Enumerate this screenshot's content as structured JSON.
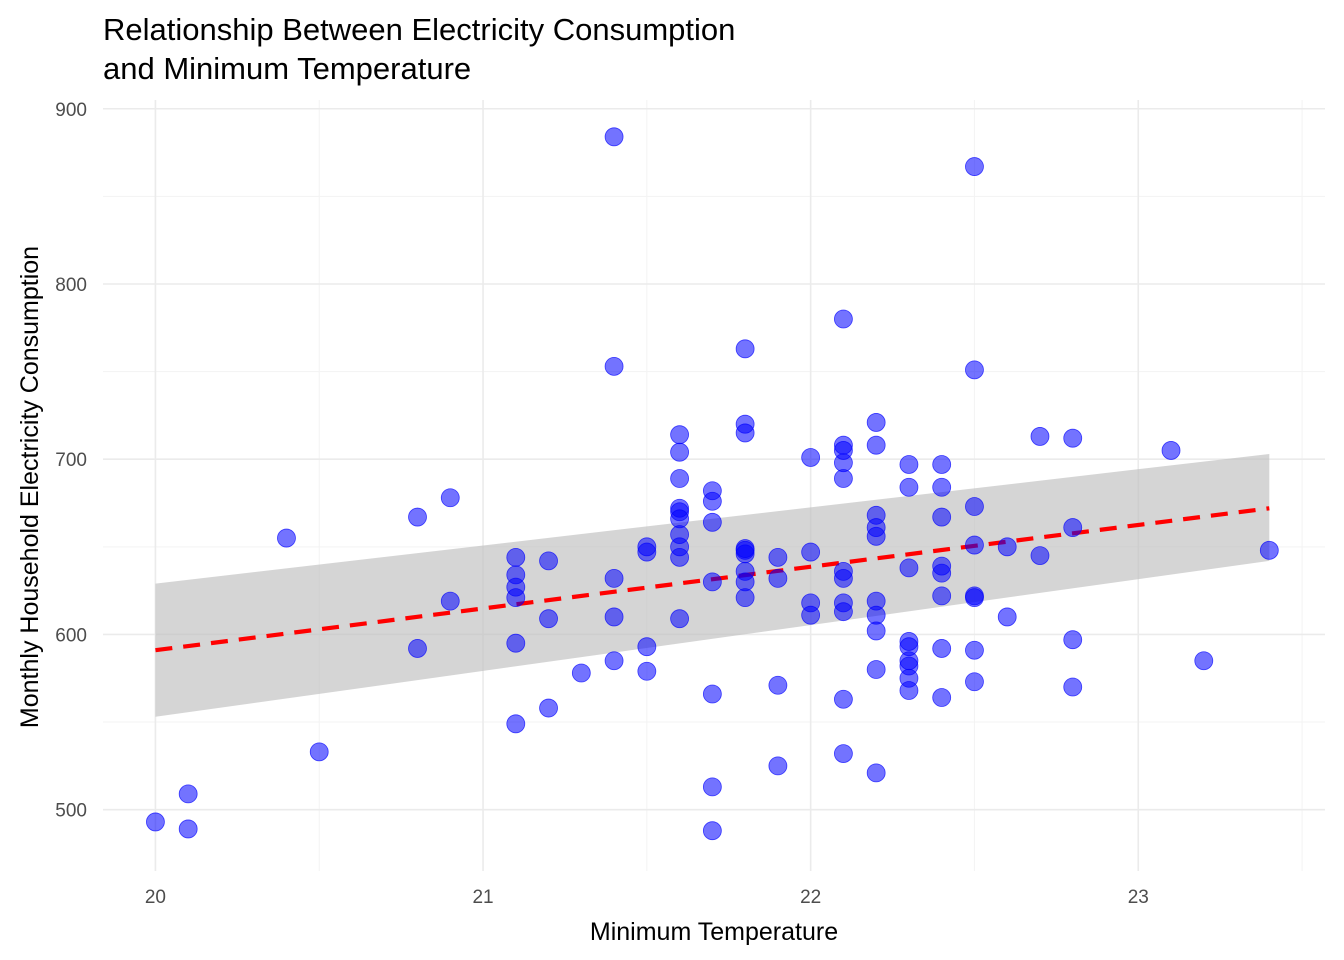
{
  "chart_data": {
    "type": "scatter",
    "title_lines": [
      "Relationship Between Electricity Consumption",
      "and Minimum Temperature"
    ],
    "xlabel": "Minimum Temperature",
    "ylabel": "Monthly Household Electricity Consumption",
    "xlim": [
      19.84,
      23.57
    ],
    "ylim": [
      465,
      905
    ],
    "x_ticks": [
      20,
      21,
      22,
      23
    ],
    "x_tick_labels": [
      "20",
      "21",
      "22",
      "23"
    ],
    "y_ticks": [
      500,
      600,
      700,
      800,
      900
    ],
    "y_tick_labels": [
      "500",
      "600",
      "700",
      "800",
      "900"
    ],
    "grid": true,
    "legend": "none",
    "point_color": "#0000ff",
    "point_opacity": 0.55,
    "trend": {
      "style": "dashed",
      "color": "#ff0000",
      "ribbon_color": "#bebebe",
      "x": [
        20.0,
        23.4
      ],
      "y": [
        591,
        672
      ],
      "ci_lower": [
        553,
        642
      ],
      "ci_upper": [
        629,
        703
      ]
    },
    "points": [
      [
        20.0,
        493
      ],
      [
        20.1,
        509
      ],
      [
        20.1,
        489
      ],
      [
        20.4,
        655
      ],
      [
        20.5,
        533
      ],
      [
        20.8,
        667
      ],
      [
        20.8,
        592
      ],
      [
        20.9,
        678
      ],
      [
        20.9,
        619
      ],
      [
        21.1,
        644
      ],
      [
        21.1,
        634
      ],
      [
        21.1,
        627
      ],
      [
        21.1,
        621
      ],
      [
        21.1,
        595
      ],
      [
        21.1,
        549
      ],
      [
        21.2,
        642
      ],
      [
        21.2,
        609
      ],
      [
        21.2,
        558
      ],
      [
        21.3,
        578
      ],
      [
        21.4,
        884
      ],
      [
        21.4,
        753
      ],
      [
        21.4,
        632
      ],
      [
        21.4,
        610
      ],
      [
        21.4,
        585
      ],
      [
        21.5,
        650
      ],
      [
        21.5,
        647
      ],
      [
        21.5,
        593
      ],
      [
        21.5,
        579
      ],
      [
        21.6,
        714
      ],
      [
        21.6,
        704
      ],
      [
        21.6,
        689
      ],
      [
        21.6,
        672
      ],
      [
        21.6,
        670
      ],
      [
        21.6,
        666
      ],
      [
        21.6,
        657
      ],
      [
        21.6,
        650
      ],
      [
        21.6,
        644
      ],
      [
        21.6,
        609
      ],
      [
        21.7,
        682
      ],
      [
        21.7,
        676
      ],
      [
        21.7,
        664
      ],
      [
        21.7,
        630
      ],
      [
        21.7,
        566
      ],
      [
        21.7,
        513
      ],
      [
        21.7,
        488
      ],
      [
        21.8,
        763
      ],
      [
        21.8,
        720
      ],
      [
        21.8,
        715
      ],
      [
        21.8,
        649
      ],
      [
        21.8,
        648
      ],
      [
        21.8,
        646
      ],
      [
        21.8,
        636
      ],
      [
        21.8,
        630
      ],
      [
        21.8,
        621
      ],
      [
        21.9,
        644
      ],
      [
        21.9,
        632
      ],
      [
        21.9,
        571
      ],
      [
        21.9,
        525
      ],
      [
        22.0,
        701
      ],
      [
        22.0,
        647
      ],
      [
        22.0,
        618
      ],
      [
        22.0,
        611
      ],
      [
        22.1,
        780
      ],
      [
        22.1,
        708
      ],
      [
        22.1,
        705
      ],
      [
        22.1,
        698
      ],
      [
        22.1,
        689
      ],
      [
        22.1,
        636
      ],
      [
        22.1,
        632
      ],
      [
        22.1,
        618
      ],
      [
        22.1,
        613
      ],
      [
        22.1,
        563
      ],
      [
        22.1,
        532
      ],
      [
        22.2,
        721
      ],
      [
        22.2,
        708
      ],
      [
        22.2,
        668
      ],
      [
        22.2,
        661
      ],
      [
        22.2,
        656
      ],
      [
        22.2,
        619
      ],
      [
        22.2,
        611
      ],
      [
        22.2,
        602
      ],
      [
        22.2,
        580
      ],
      [
        22.2,
        521
      ],
      [
        22.3,
        697
      ],
      [
        22.3,
        684
      ],
      [
        22.3,
        638
      ],
      [
        22.3,
        596
      ],
      [
        22.3,
        593
      ],
      [
        22.3,
        585
      ],
      [
        22.3,
        582
      ],
      [
        22.3,
        575
      ],
      [
        22.3,
        568
      ],
      [
        22.4,
        697
      ],
      [
        22.4,
        684
      ],
      [
        22.4,
        667
      ],
      [
        22.4,
        639
      ],
      [
        22.4,
        635
      ],
      [
        22.4,
        622
      ],
      [
        22.4,
        592
      ],
      [
        22.4,
        564
      ],
      [
        22.5,
        867
      ],
      [
        22.5,
        751
      ],
      [
        22.5,
        673
      ],
      [
        22.5,
        651
      ],
      [
        22.5,
        622
      ],
      [
        22.5,
        621
      ],
      [
        22.5,
        591
      ],
      [
        22.5,
        573
      ],
      [
        22.6,
        650
      ],
      [
        22.6,
        610
      ],
      [
        22.7,
        713
      ],
      [
        22.7,
        645
      ],
      [
        22.8,
        712
      ],
      [
        22.8,
        661
      ],
      [
        22.8,
        597
      ],
      [
        22.8,
        570
      ],
      [
        23.1,
        705
      ],
      [
        23.2,
        585
      ],
      [
        23.4,
        648
      ]
    ]
  }
}
